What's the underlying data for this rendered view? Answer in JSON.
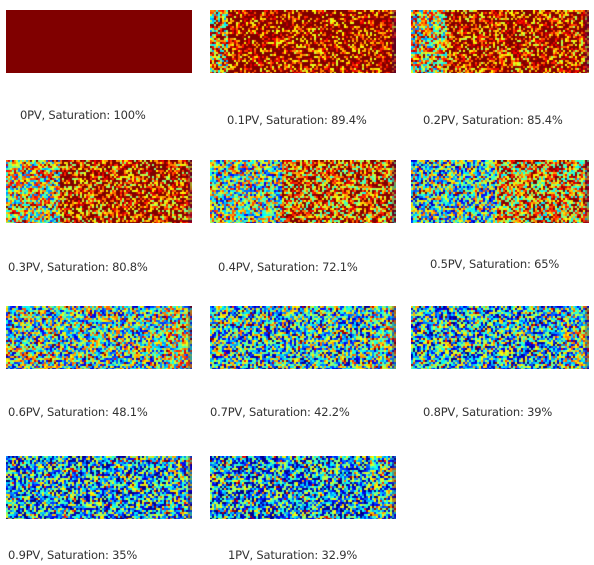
{
  "figure": {
    "panels": [
      {
        "label": "0PV, Saturation:  100%",
        "pv": 0.0,
        "saturation": 100.0
      },
      {
        "label": "0.1PV, Saturation:  89.4%",
        "pv": 0.1,
        "saturation": 89.4
      },
      {
        "label": "0.2PV, Saturation:  85.4%",
        "pv": 0.2,
        "saturation": 85.4
      },
      {
        "label": "0.3PV, Saturation:  80.8%",
        "pv": 0.3,
        "saturation": 80.8
      },
      {
        "label": "0.4PV, Saturation:  72.1%",
        "pv": 0.4,
        "saturation": 72.1
      },
      {
        "label": "0.5PV, Saturation:  65%",
        "pv": 0.5,
        "saturation": 65.0
      },
      {
        "label": "0.6PV, Saturation:  48.1%",
        "pv": 0.6,
        "saturation": 48.1
      },
      {
        "label": "0.7PV, Saturation:  42.2%",
        "pv": 0.7,
        "saturation": 42.2
      },
      {
        "label": "0.8PV, Saturation:  39%",
        "pv": 0.8,
        "saturation": 39.0
      },
      {
        "label": "0.9PV, Saturation:  35%",
        "pv": 0.9,
        "saturation": 35.0
      },
      {
        "label": "1PV, Saturation:  32.9%",
        "pv": 1.0,
        "saturation": 32.9
      }
    ],
    "colormap": "jet"
  }
}
